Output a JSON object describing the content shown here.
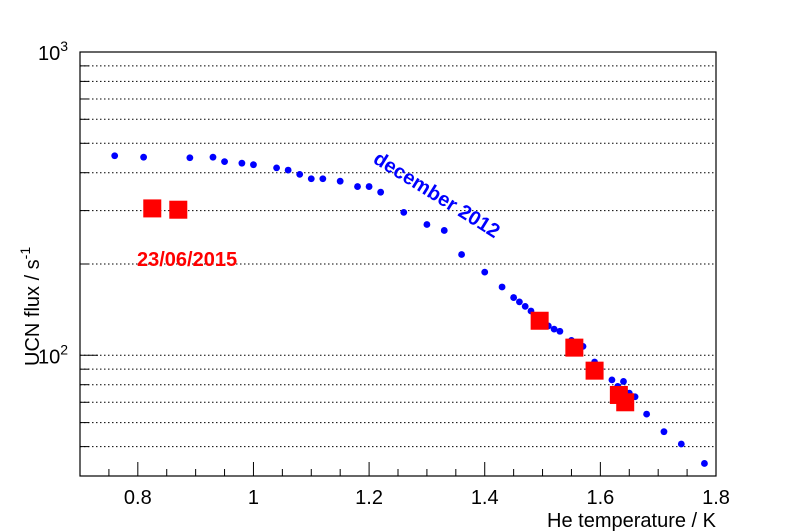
{
  "chart_data": {
    "type": "scatter",
    "title": "",
    "xlabel": "He temperature / K",
    "ylabel": "UCN flux / s",
    "ylabel_superscript": "-1",
    "xlim": [
      0.7,
      1.8
    ],
    "ylim": [
      40,
      1000
    ],
    "yscale": "log",
    "grid": "horizontal-dotted",
    "x_ticks": [
      0.8,
      1,
      1.2,
      1.4,
      1.6,
      1.8
    ],
    "x_tick_labels": [
      "0.8",
      "1",
      "1.2",
      "1.4",
      "1.6",
      "1.8"
    ],
    "y_major_ticks": [
      100,
      1000
    ],
    "y_tick_base": "10",
    "y_tick_exponents": [
      "2",
      "3"
    ],
    "y_minor_ticks": [
      40,
      50,
      60,
      70,
      80,
      90,
      200,
      300,
      400,
      500,
      600,
      700,
      800,
      900
    ],
    "series": [
      {
        "name": "december 2012",
        "color": "#0000ff",
        "marker": "circle",
        "points": [
          [
            0.76,
            455
          ],
          [
            0.81,
            450
          ],
          [
            0.89,
            448
          ],
          [
            0.93,
            450
          ],
          [
            0.95,
            435
          ],
          [
            0.98,
            430
          ],
          [
            1.0,
            425
          ],
          [
            1.04,
            415
          ],
          [
            1.06,
            408
          ],
          [
            1.08,
            395
          ],
          [
            1.1,
            382
          ],
          [
            1.12,
            382
          ],
          [
            1.15,
            375
          ],
          [
            1.18,
            360
          ],
          [
            1.2,
            360
          ],
          [
            1.22,
            345
          ],
          [
            1.26,
            296
          ],
          [
            1.3,
            270
          ],
          [
            1.33,
            258
          ],
          [
            1.36,
            215
          ],
          [
            1.4,
            188
          ],
          [
            1.43,
            168
          ],
          [
            1.45,
            155
          ],
          [
            1.46,
            150
          ],
          [
            1.47,
            145
          ],
          [
            1.48,
            140
          ],
          [
            1.49,
            132
          ],
          [
            1.5,
            128
          ],
          [
            1.51,
            125
          ],
          [
            1.52,
            122
          ],
          [
            1.53,
            120
          ],
          [
            1.55,
            112
          ],
          [
            1.56,
            107
          ],
          [
            1.57,
            107
          ],
          [
            1.59,
            95
          ],
          [
            1.6,
            90
          ],
          [
            1.62,
            83
          ],
          [
            1.63,
            79
          ],
          [
            1.64,
            82
          ],
          [
            1.65,
            75
          ],
          [
            1.66,
            73
          ],
          [
            1.68,
            64
          ],
          [
            1.71,
            56
          ],
          [
            1.74,
            51
          ],
          [
            1.78,
            44
          ]
        ]
      },
      {
        "name": "23/06/2015",
        "color": "#ff0000",
        "marker": "square",
        "points": [
          [
            0.825,
            305
          ],
          [
            0.87,
            302
          ],
          [
            1.495,
            130
          ],
          [
            1.555,
            106
          ],
          [
            1.59,
            89
          ],
          [
            1.632,
            74
          ],
          [
            1.643,
            70
          ]
        ]
      }
    ],
    "annotations": [
      {
        "text": "december 2012",
        "color": "#0000ff",
        "angle": 32
      },
      {
        "text": "23/06/2015",
        "color": "#ff0000",
        "angle": 0
      }
    ]
  }
}
